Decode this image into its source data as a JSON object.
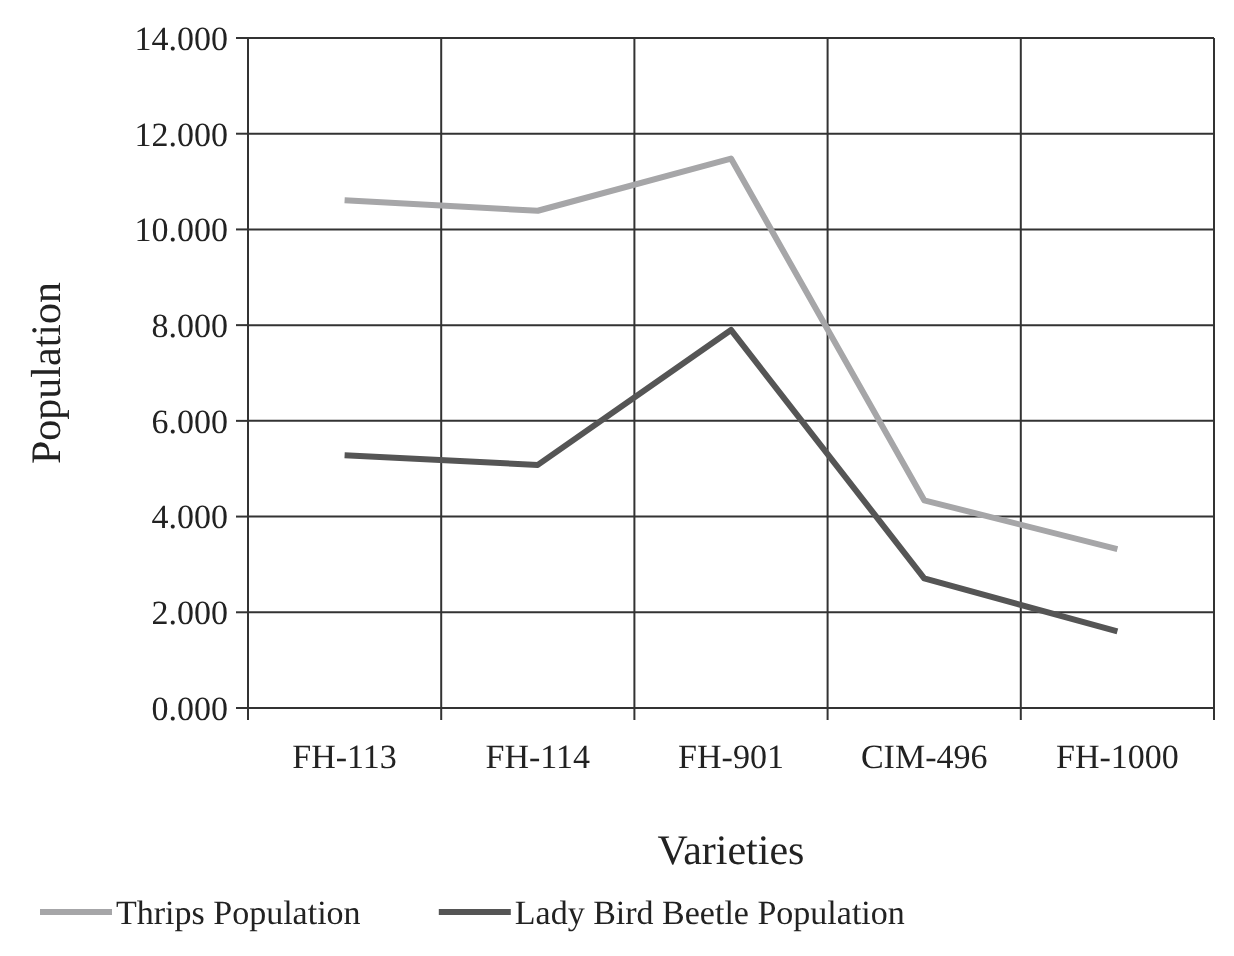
{
  "chart_data": {
    "type": "line",
    "xlabel": "Varieties",
    "ylabel": "Population",
    "categories": [
      "FH-113",
      "FH-114",
      "FH-901",
      "CIM-496",
      "FH-1000"
    ],
    "series": [
      {
        "name": "Thrips Population",
        "color": "#a6a6a8",
        "values": [
          10.61,
          10.39,
          11.48,
          4.34,
          3.32
        ]
      },
      {
        "name": "Lady Bird Beetle Population",
        "color": "#555555",
        "values": [
          5.28,
          5.08,
          7.9,
          2.71,
          1.6
        ]
      }
    ],
    "ylim": [
      0,
      14
    ],
    "yticks": [
      {
        "value": 0,
        "label": "0.000"
      },
      {
        "value": 2,
        "label": "2.000"
      },
      {
        "value": 4,
        "label": "4.000"
      },
      {
        "value": 6,
        "label": "6.000"
      },
      {
        "value": 8,
        "label": "8.000"
      },
      {
        "value": 10,
        "label": "10.000"
      },
      {
        "value": 12,
        "label": "12.000"
      },
      {
        "value": 14,
        "label": "14.000"
      }
    ],
    "grid": true,
    "legend": "bottom",
    "marker": "none",
    "line_style": "solid"
  }
}
